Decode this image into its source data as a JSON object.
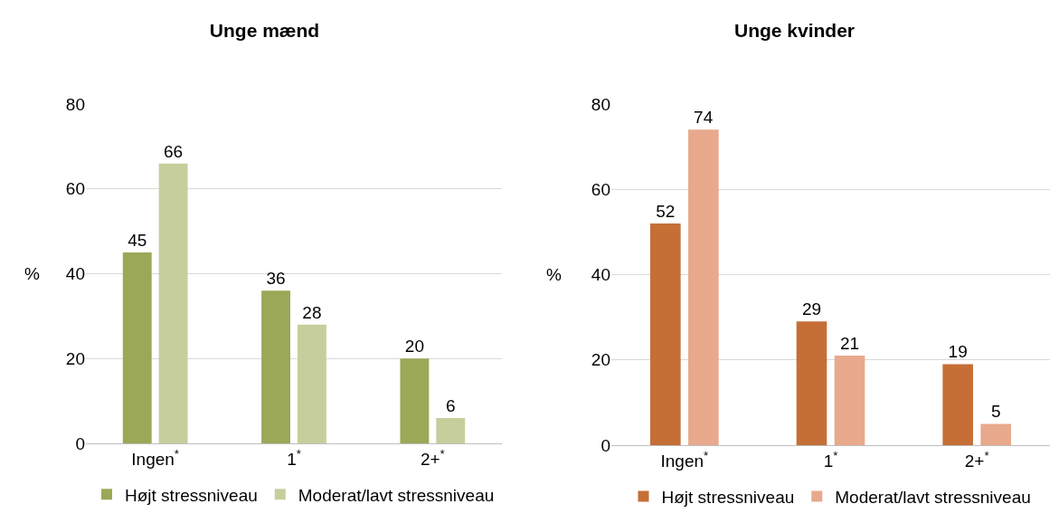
{
  "chart_data": [
    {
      "type": "bar",
      "title": "Unge mænd",
      "ylabel": "%",
      "categories": [
        "Ingen$^{*}$",
        "1$^{*}$",
        "2+$^{*}$"
      ],
      "series": [
        {
          "name": "Højt stressniveau",
          "color": "#9aa857",
          "values": [
            45,
            36,
            20
          ]
        },
        {
          "name": "Moderat/lavt stressniveau",
          "color": "#c6ce9c",
          "values": [
            66,
            28,
            6
          ]
        }
      ],
      "ylim": [
        0,
        80
      ],
      "yticks": [
        0,
        20,
        40,
        60,
        80
      ],
      "grid": "y",
      "legend": "bottom",
      "data_labels": true
    },
    {
      "type": "bar",
      "title": "Unge kvinder",
      "ylabel": "%",
      "categories": [
        "Ingen$^{*}$",
        "1$^{*}$",
        "2+$^{*}$"
      ],
      "series": [
        {
          "name": "Højt stressniveau",
          "color": "#c56f37",
          "values": [
            52,
            29,
            19
          ]
        },
        {
          "name": "Moderat/lavt stressniveau",
          "color": "#e8a98c",
          "values": [
            74,
            21,
            5
          ]
        }
      ],
      "ylim": [
        0,
        80
      ],
      "yticks": [
        0,
        20,
        40,
        60,
        80
      ],
      "grid": "y",
      "legend": "bottom",
      "data_labels": true
    }
  ]
}
